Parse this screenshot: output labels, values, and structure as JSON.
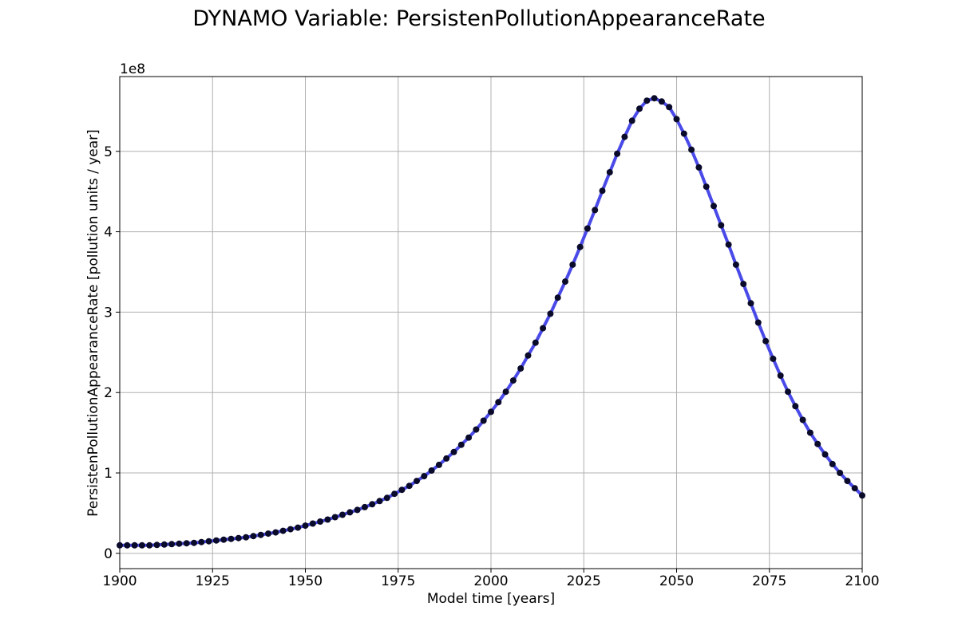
{
  "chart_data": {
    "type": "line",
    "title": "DYNAMO Variable: PersistenPollutionAppearanceRate",
    "xlabel": "Model time [years]",
    "ylabel": "PersistenPollutionAppearanceRate [pollution units / year]",
    "y_multiplier_label": "1e8",
    "xlim": [
      1900,
      2100
    ],
    "ylim": [
      -0.19,
      5.93
    ],
    "x_ticks": [
      1900,
      1925,
      1950,
      1975,
      2000,
      2025,
      2050,
      2075,
      2100
    ],
    "x_tick_labels": [
      "1900",
      "1925",
      "1950",
      "1975",
      "2000",
      "2025",
      "2050",
      "2075",
      "2100"
    ],
    "y_ticks": [
      0,
      1,
      2,
      3,
      4,
      5
    ],
    "y_tick_labels": [
      "0",
      "1",
      "2",
      "3",
      "4",
      "5"
    ],
    "grid": true,
    "line_color": "#4a4ae8",
    "marker_color": "#0a0a2a",
    "marker_step": 2,
    "series": [
      {
        "x": [
          1900,
          1902,
          1904,
          1906,
          1908,
          1910,
          1912,
          1914,
          1916,
          1918,
          1920,
          1922,
          1924,
          1926,
          1928,
          1930,
          1932,
          1934,
          1936,
          1938,
          1940,
          1942,
          1944,
          1946,
          1948,
          1950,
          1952,
          1954,
          1956,
          1958,
          1960,
          1962,
          1964,
          1966,
          1968,
          1970,
          1972,
          1974,
          1976,
          1978,
          1980,
          1982,
          1984,
          1986,
          1988,
          1990,
          1992,
          1994,
          1996,
          1998,
          2000,
          2002,
          2004,
          2006,
          2008,
          2010,
          2012,
          2014,
          2016,
          2018,
          2020,
          2022,
          2024,
          2026,
          2028,
          2030,
          2032,
          2034,
          2036,
          2038,
          2040,
          2042,
          2044,
          2046,
          2048,
          2050,
          2052,
          2054,
          2056,
          2058,
          2060,
          2062,
          2064,
          2066,
          2068,
          2070,
          2072,
          2074,
          2076,
          2078,
          2080,
          2082,
          2084,
          2086,
          2088,
          2090,
          2092,
          2094,
          2096,
          2098,
          2100
        ],
        "y": [
          0.1,
          0.1,
          0.1,
          0.1,
          0.1,
          0.105,
          0.11,
          0.115,
          0.12,
          0.125,
          0.13,
          0.14,
          0.15,
          0.16,
          0.17,
          0.18,
          0.19,
          0.2,
          0.215,
          0.23,
          0.245,
          0.26,
          0.28,
          0.3,
          0.32,
          0.345,
          0.37,
          0.395,
          0.42,
          0.45,
          0.48,
          0.51,
          0.54,
          0.575,
          0.61,
          0.65,
          0.69,
          0.74,
          0.79,
          0.84,
          0.9,
          0.96,
          1.03,
          1.1,
          1.18,
          1.26,
          1.35,
          1.44,
          1.54,
          1.65,
          1.76,
          1.88,
          2.01,
          2.15,
          2.3,
          2.46,
          2.62,
          2.8,
          2.98,
          3.18,
          3.38,
          3.59,
          3.81,
          4.04,
          4.27,
          4.51,
          4.74,
          4.97,
          5.18,
          5.38,
          5.53,
          5.63,
          5.66,
          5.62,
          5.55,
          5.4,
          5.22,
          5.02,
          4.8,
          4.56,
          4.32,
          4.08,
          3.84,
          3.59,
          3.35,
          3.11,
          2.87,
          2.64,
          2.42,
          2.21,
          2.01,
          1.83,
          1.66,
          1.5,
          1.36,
          1.23,
          1.11,
          1.0,
          0.9,
          0.81,
          0.72
        ]
      }
    ]
  }
}
